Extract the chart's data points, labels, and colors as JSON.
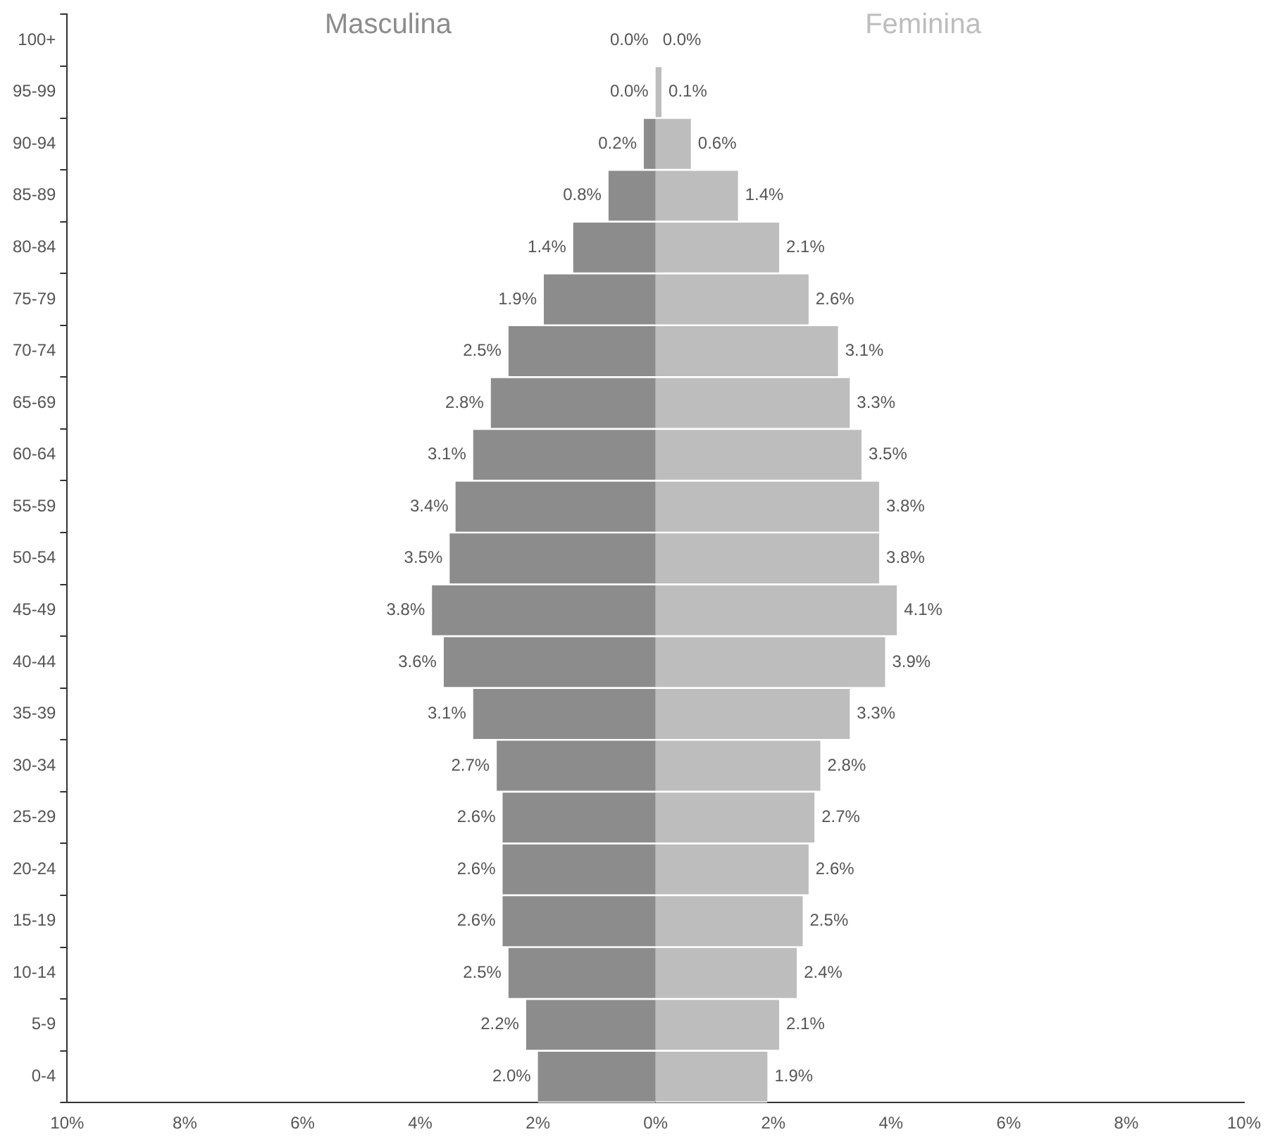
{
  "chart_data": {
    "type": "bar",
    "orientation": "horizontal",
    "categories": [
      "100+",
      "95-99",
      "90-94",
      "85-89",
      "80-84",
      "75-79",
      "70-74",
      "65-69",
      "60-64",
      "55-59",
      "50-54",
      "45-49",
      "40-44",
      "35-39",
      "30-34",
      "25-29",
      "20-24",
      "15-19",
      "10-14",
      "5-9",
      "0-4"
    ],
    "series": [
      {
        "name": "Masculina",
        "color": "#8c8c8c",
        "values": [
          0.0,
          0.0,
          0.2,
          0.8,
          1.4,
          1.9,
          2.5,
          2.8,
          3.1,
          3.4,
          3.5,
          3.8,
          3.6,
          3.1,
          2.7,
          2.6,
          2.6,
          2.6,
          2.5,
          2.2,
          2.0
        ],
        "base": [
          0.0,
          0.0,
          -0.2,
          -0.8,
          -1.4,
          -1.9,
          -2.5,
          -2.8,
          -3.1,
          -3.4,
          -3.5,
          -3.8,
          -3.6,
          -3.1,
          -2.7,
          -2.6,
          -2.6,
          -2.6,
          -2.5,
          -2.2,
          -2.0
        ],
        "value_labels": [
          "0.0%",
          "0.0%",
          "0.2%",
          "0.8%",
          "1.4%",
          "1.9%",
          "2.5%",
          "2.8%",
          "3.1%",
          "3.4%",
          "3.5%",
          "3.8%",
          "3.6%",
          "3.1%",
          "2.7%",
          "2.6%",
          "2.6%",
          "2.6%",
          "2.5%",
          "2.2%",
          "2.0%"
        ]
      },
      {
        "name": "Feminina",
        "color": "#bdbdbd",
        "values": [
          0.0,
          0.1,
          0.6,
          1.4,
          2.1,
          2.6,
          3.1,
          3.3,
          3.5,
          3.8,
          3.8,
          4.1,
          3.9,
          3.3,
          2.8,
          2.7,
          2.6,
          2.5,
          2.4,
          2.1,
          1.9
        ],
        "value_labels": [
          "0.0%",
          "0.1%",
          "0.6%",
          "1.4%",
          "2.1%",
          "2.6%",
          "3.1%",
          "3.3%",
          "3.5%",
          "3.8%",
          "3.8%",
          "4.1%",
          "3.9%",
          "3.3%",
          "2.8%",
          "2.7%",
          "2.6%",
          "2.5%",
          "2.4%",
          "2.1%",
          "1.9%"
        ]
      }
    ],
    "xlim": [
      -10,
      10
    ],
    "xticks": [
      {
        "value": -10,
        "label": "10%"
      },
      {
        "value": -8,
        "label": "8%"
      },
      {
        "value": -6,
        "label": "6%"
      },
      {
        "value": -4,
        "label": "4%"
      },
      {
        "value": -2,
        "label": "2%"
      },
      {
        "value": 0,
        "label": "0%"
      },
      {
        "value": 2,
        "label": "2%"
      },
      {
        "value": 4,
        "label": "4%"
      },
      {
        "value": 6,
        "label": "6%"
      },
      {
        "value": 8,
        "label": "8%"
      },
      {
        "value": 10,
        "label": "10%"
      }
    ]
  }
}
